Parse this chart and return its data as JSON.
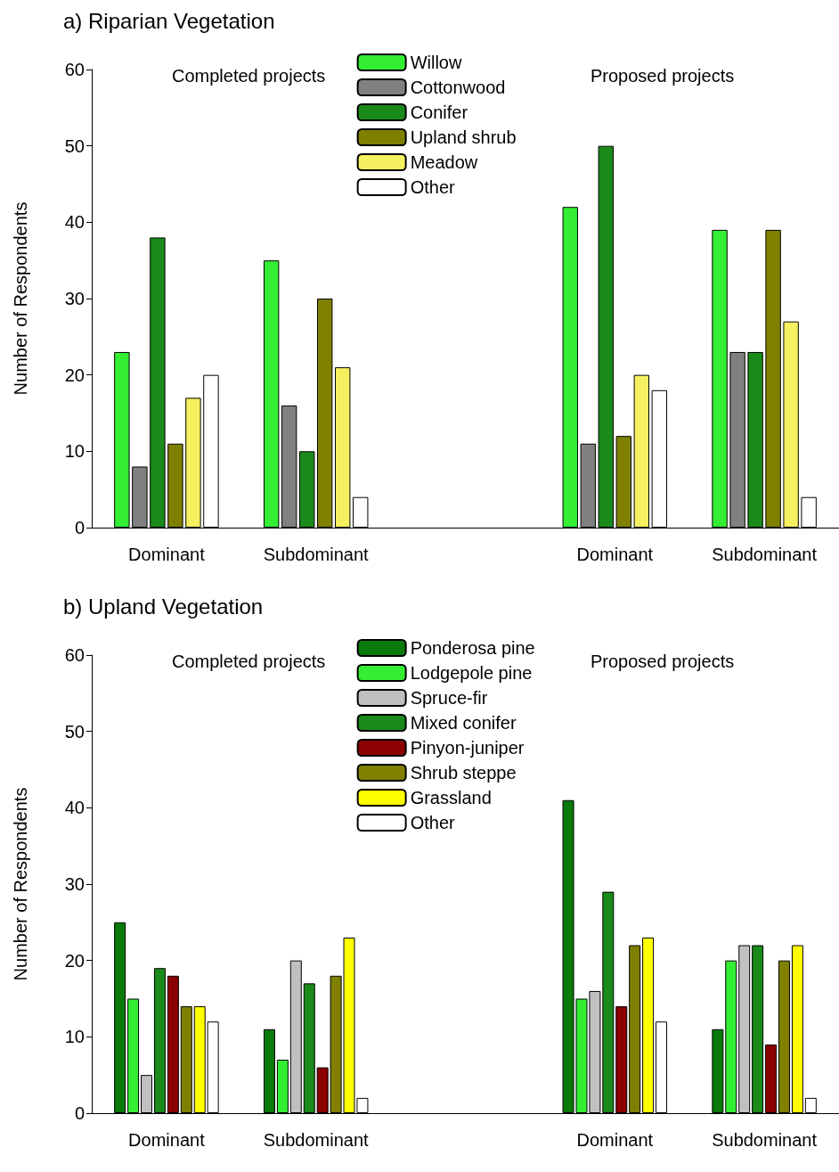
{
  "chart_data": [
    {
      "type": "bar",
      "title": "a) Riparian Vegetation",
      "ylabel": "Number of Respondents",
      "annotations": [
        "Completed projects",
        "Proposed projects"
      ],
      "categories": [
        "Dominant",
        "Subdominant",
        null,
        "Dominant",
        "Subdominant"
      ],
      "ylim": [
        0,
        60
      ],
      "yticks": [
        0,
        10,
        20,
        30,
        40,
        50,
        60
      ],
      "grid": false,
      "legend": "top",
      "series": [
        {
          "name": "Willow",
          "color": "#33ee33",
          "values": [
            23,
            35,
            null,
            42,
            39
          ]
        },
        {
          "name": "Cottonwood",
          "color": "#808080",
          "values": [
            8,
            16,
            null,
            11,
            23
          ]
        },
        {
          "name": "Conifer",
          "color": "#1a8a1a",
          "values": [
            38,
            10,
            null,
            50,
            23
          ]
        },
        {
          "name": "Upland shrub",
          "color": "#808000",
          "values": [
            11,
            30,
            null,
            12,
            39
          ]
        },
        {
          "name": "Meadow",
          "color": "#f5f060",
          "values": [
            17,
            21,
            null,
            20,
            27
          ]
        },
        {
          "name": "Other",
          "color": "#ffffff",
          "values": [
            20,
            4,
            null,
            18,
            4
          ]
        }
      ]
    },
    {
      "type": "bar",
      "title": "b) Upland Vegetation",
      "ylabel": "Number of Respondents",
      "annotations": [
        "Completed projects",
        "Proposed projects"
      ],
      "categories": [
        "Dominant",
        "Subdominant",
        null,
        "Dominant",
        "Subdominant"
      ],
      "ylim": [
        0,
        60
      ],
      "yticks": [
        0,
        10,
        20,
        30,
        40,
        50,
        60
      ],
      "grid": false,
      "legend": "top",
      "series": [
        {
          "name": "Ponderosa pine",
          "color": "#0a7a0a",
          "values": [
            25,
            11,
            null,
            41,
            11
          ]
        },
        {
          "name": "Lodgepole pine",
          "color": "#33ee33",
          "values": [
            15,
            7,
            null,
            15,
            20
          ]
        },
        {
          "name": "Spruce-fir",
          "color": "#c0c0c0",
          "values": [
            5,
            20,
            null,
            16,
            22
          ]
        },
        {
          "name": "Mixed conifer",
          "color": "#1a8a1a",
          "values": [
            19,
            17,
            null,
            29,
            22
          ]
        },
        {
          "name": "Pinyon-juniper",
          "color": "#8b0000",
          "values": [
            18,
            6,
            null,
            14,
            9
          ]
        },
        {
          "name": "Shrub steppe",
          "color": "#808000",
          "values": [
            14,
            18,
            null,
            22,
            20
          ]
        },
        {
          "name": "Grassland",
          "color": "#ffff00",
          "values": [
            14,
            23,
            null,
            23,
            22
          ]
        },
        {
          "name": "Other",
          "color": "#ffffff",
          "values": [
            12,
            2,
            null,
            12,
            2
          ]
        }
      ]
    }
  ]
}
